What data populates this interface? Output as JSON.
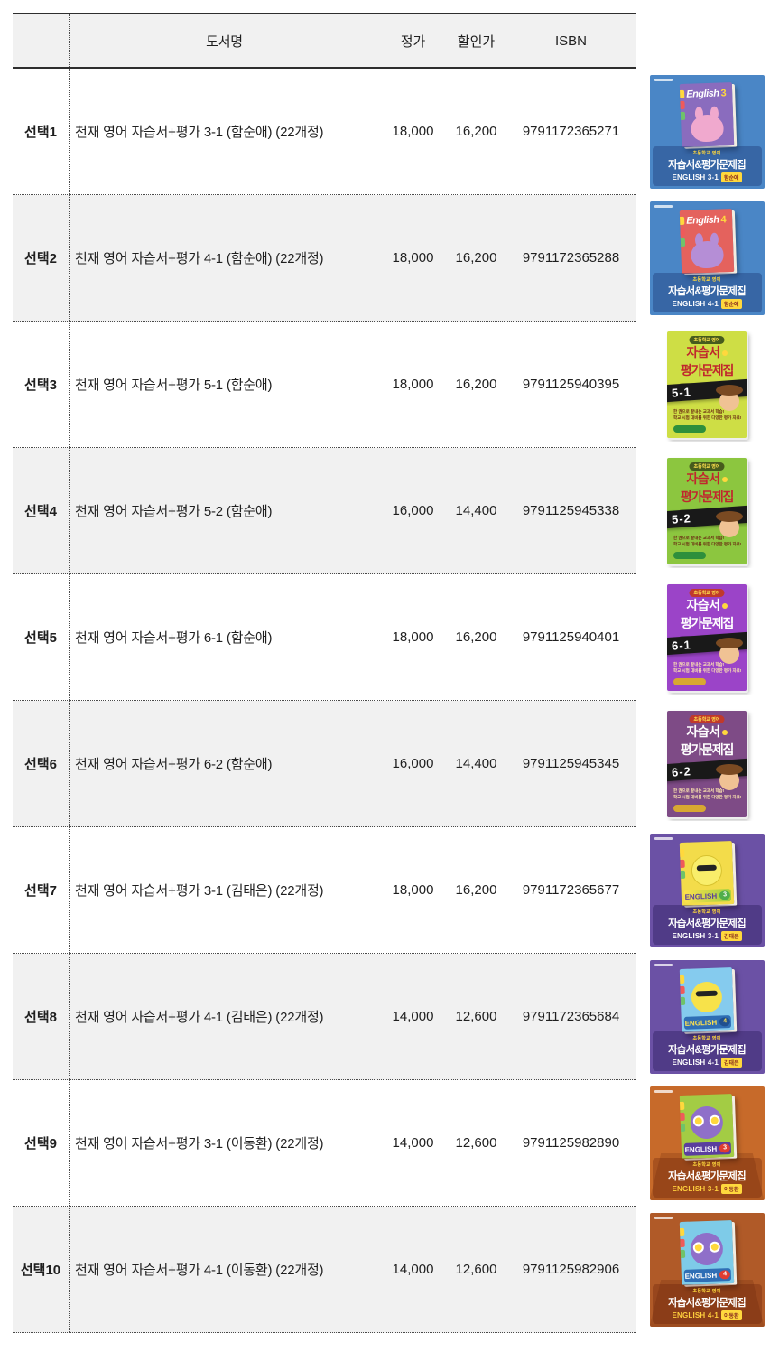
{
  "table": {
    "headers": {
      "title": "도서명",
      "list_price": "정가",
      "discount_price": "할인가",
      "isbn": "ISBN"
    },
    "rows": [
      {
        "select": "선택1",
        "title": "천재 영어 자습서+평가 3-1 (함순애) (22개정)",
        "list_price": "18,000",
        "discount_price": "16,200",
        "isbn": "9791172365271"
      },
      {
        "select": "선택2",
        "title": "천재 영어 자습서+평가 4-1 (함순애) (22개정)",
        "list_price": "18,000",
        "discount_price": "16,200",
        "isbn": "9791172365288"
      },
      {
        "select": "선택3",
        "title": "천재 영어 자습서+평가 5-1 (함순애)",
        "list_price": "18,000",
        "discount_price": "16,200",
        "isbn": "9791125940395"
      },
      {
        "select": "선택4",
        "title": "천재 영어 자습서+평가 5-2 (함순애)",
        "list_price": "16,000",
        "discount_price": "14,400",
        "isbn": "9791125945338"
      },
      {
        "select": "선택5",
        "title": "천재 영어 자습서+평가 6-1 (함순애)",
        "list_price": "18,000",
        "discount_price": "16,200",
        "isbn": "9791125940401"
      },
      {
        "select": "선택6",
        "title": "천재 영어 자습서+평가 6-2 (함순애)",
        "list_price": "16,000",
        "discount_price": "14,400",
        "isbn": "9791125945345"
      },
      {
        "select": "선택7",
        "title": "천재 영어 자습서+평가 3-1 (김태은) (22개정)",
        "list_price": "18,000",
        "discount_price": "16,200",
        "isbn": "9791172365677"
      },
      {
        "select": "선택8",
        "title": "천재 영어 자습서+평가 4-1 (김태은) (22개정)",
        "list_price": "14,000",
        "discount_price": "12,600",
        "isbn": "9791172365684"
      },
      {
        "select": "선택9",
        "title": "천재 영어 자습서+평가 3-1 (이동환) (22개정)",
        "list_price": "14,000",
        "discount_price": "12,600",
        "isbn": "9791125982890"
      },
      {
        "select": "선택10",
        "title": "천재 영어 자습서+평가 4-1 (이동환) (22개정)",
        "list_price": "14,000",
        "discount_price": "12,600",
        "isbn": "9791125982906"
      }
    ]
  },
  "covers": [
    {
      "style": "poster",
      "bg": "#4a86c6",
      "book_color": "#8a6cbe",
      "book_title": "English",
      "book_grade": "3",
      "top_small": "초등학교 영어",
      "brand": "자습서&평가문제집",
      "series": "ENGLISH 3-1",
      "author": "함순애"
    },
    {
      "style": "poster",
      "bg": "#4a86c6",
      "book_color": "#e4625d",
      "book_title": "English",
      "book_grade": "4",
      "top_small": "초등학교 영어",
      "brand": "자습서&평가문제집",
      "series": "ENGLISH 4-1",
      "author": "함순애"
    },
    {
      "style": "book",
      "cover_color": "#cede45",
      "top_small": "초등학교 영어",
      "title1": "자습서",
      "title2": "평가문제집",
      "ribbon": "5-1",
      "line1": "한 권으로 끝내는 교과서 학습!",
      "line2": "학교 시험 대비를 위한 다양한 평가 자료!"
    },
    {
      "style": "book",
      "cover_color": "#8cc63f",
      "top_small": "초등학교 영어",
      "title1": "자습서",
      "title2": "평가문제집",
      "ribbon": "5-2",
      "line1": "한 권으로 끝내는 교과서 학습!",
      "line2": "학교 시험 대비를 위한 다양한 평가 자료!"
    },
    {
      "style": "book",
      "cover_color": "#9b44c8",
      "top_small": "초등학교 영어",
      "title1": "자습서",
      "title2": "평가문제집",
      "ribbon": "6-1",
      "line1": "한 권으로 끝내는 교과서 학습!",
      "line2": "학교 시험 대비를 위한 다양한 평가 자료!"
    },
    {
      "style": "book",
      "cover_color": "#7e4b86",
      "top_small": "초등학교 영어",
      "title1": "자습서",
      "title2": "평가문제집",
      "ribbon": "6-2",
      "line1": "한 권으로 끝내는 교과서 학습!",
      "line2": "학교 시험 대비를 위한 다양한 평가 자료!"
    },
    {
      "style": "poster",
      "bg": "#6b51a5",
      "book_color": "#f3dc4a",
      "book_title": "ENGLISH",
      "book_grade": "3",
      "top_small": "초등학교 영어",
      "brand": "자습서&평가문제집",
      "series": "ENGLISH 3-1",
      "author": "김태은"
    },
    {
      "style": "poster",
      "bg": "#6b51a5",
      "book_color": "#85cbee",
      "book_title": "ENGLISH",
      "book_grade": "4",
      "top_small": "초등학교 영어",
      "brand": "자습서&평가문제집",
      "series": "ENGLISH 4-1",
      "author": "김태은"
    },
    {
      "style": "poster",
      "bg": "#c76a2a",
      "book_color": "#a3cc44",
      "book_title": "ENGLISH",
      "book_grade": "3",
      "top_small": "초등학교 영어",
      "brand": "자습서&평가문제집",
      "series": "ENGLISH 3-1",
      "author": "이동환"
    },
    {
      "style": "poster",
      "bg": "#b05a28",
      "book_color": "#7ecbe8",
      "book_title": "ENGLISH",
      "book_grade": "4",
      "top_small": "초등학교 영어",
      "brand": "자습서&평가문제집",
      "series": "ENGLISH 4-1",
      "author": "이동환"
    }
  ],
  "colors": {
    "row_alt_bg": "#f1f1f1",
    "header_border": "#2e2e2e",
    "dotted_divider": "#4a4a4a",
    "accent_yellow": "#ffd83d",
    "ribbon_black": "#191919",
    "title_red": "#c0272d"
  }
}
